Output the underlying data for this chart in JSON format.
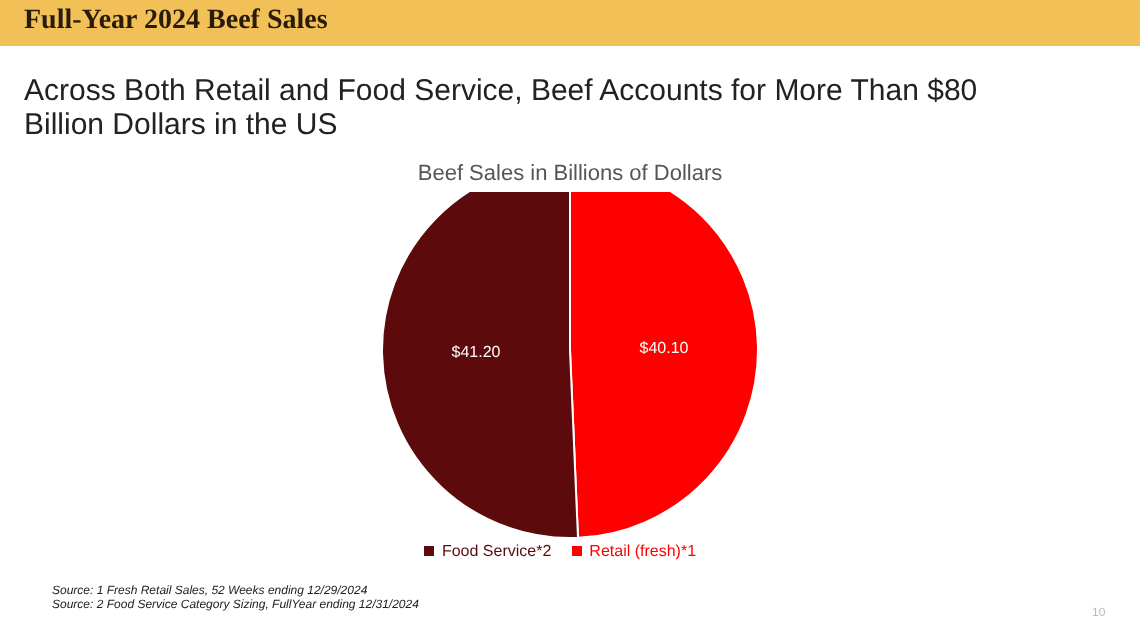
{
  "chart_data": {
    "type": "pie",
    "title": "Full-Year 2024 Beef Sales",
    "subtitle": "Across Both Retail and Food Service, Beef Accounts for More Than $80 Billion Dollars in the US",
    "xlabel": "Beef Sales in Billions of Dollars",
    "categories": [
      "Retail (fresh)*1",
      "Food Service*2"
    ],
    "values": [
      40.1,
      41.2
    ],
    "colors": [
      "#ff0000",
      "#5c0a0c"
    ],
    "value_labels": [
      "$40.10",
      "$41.20"
    ],
    "legend": "bottom",
    "annotations": [
      "Source: 1 Fresh Retail Sales, 52 Weeks ending 12/29/2024",
      "Source: 2 Food Service Category Sizing, FullYear ending 12/31/2024",
      "10"
    ]
  }
}
